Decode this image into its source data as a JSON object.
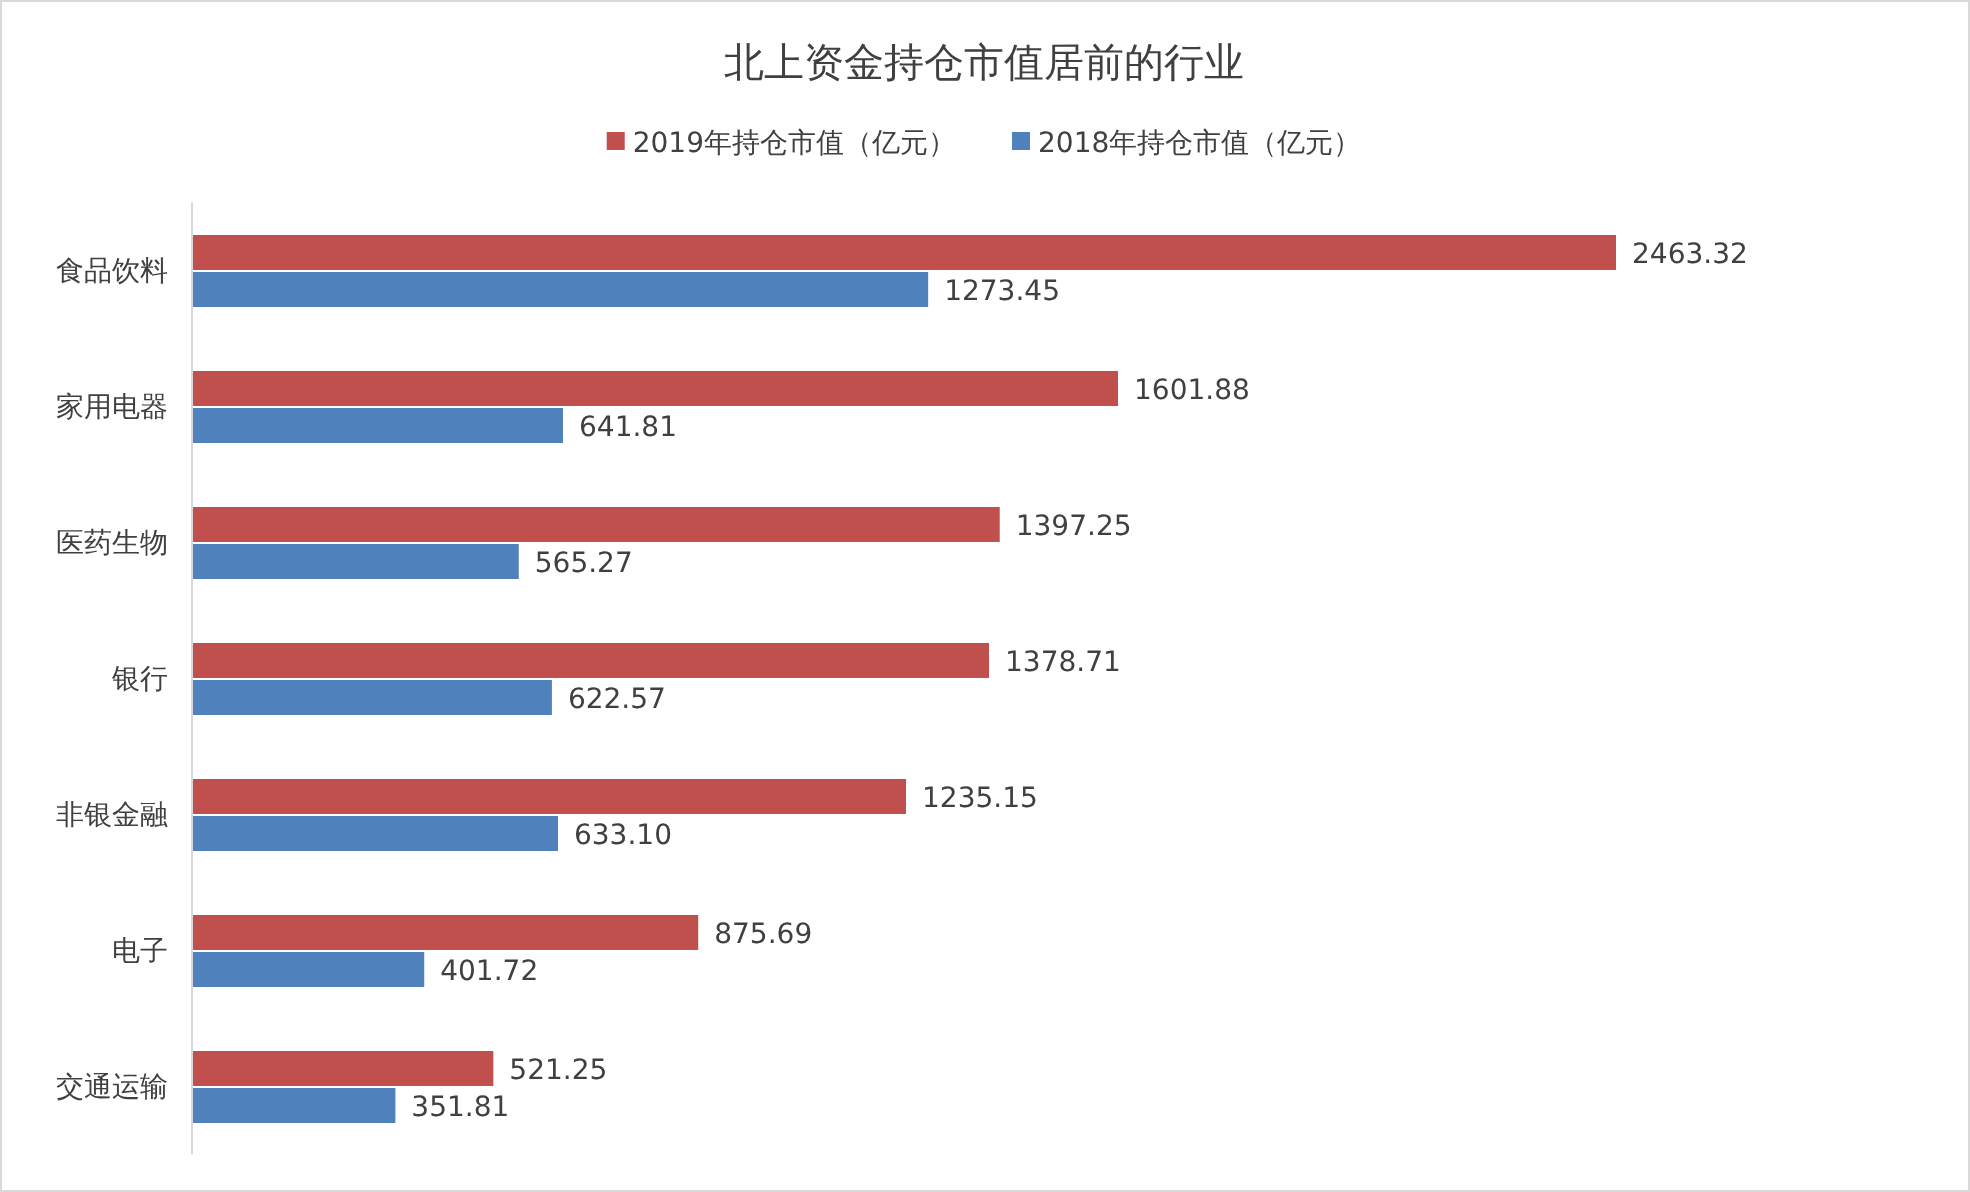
{
  "chart_data": {
    "type": "bar",
    "orientation": "horizontal",
    "title": "北上资金持仓市值居前的行业",
    "legend": "top",
    "data_labels": true,
    "categories": [
      "食品饮料",
      "家用电器",
      "医药生物",
      "银行",
      "非银金融",
      "电子",
      "交通运输"
    ],
    "series": [
      {
        "name": "2019年持仓市值（亿元）",
        "color": "#c0504d",
        "values": [
          2463.32,
          1601.88,
          1397.25,
          1378.71,
          1235.15,
          875.69,
          521.25
        ]
      },
      {
        "name": "2018年持仓市值（亿元）",
        "color": "#4f81bd",
        "values": [
          1273.45,
          641.81,
          565.27,
          622.57,
          633.1,
          401.72,
          351.81
        ],
        "value_labels": [
          "1273.45",
          "641.81",
          "565.27",
          "622.57",
          "633.10",
          "401.72",
          "351.81"
        ]
      }
    ]
  }
}
